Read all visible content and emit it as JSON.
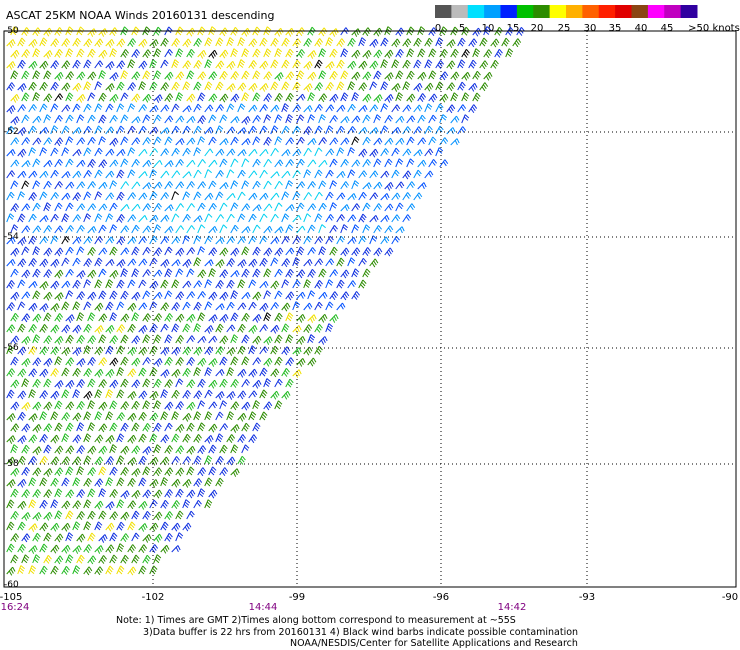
{
  "title": "ASCAT 25KM NOAA Winds 20160131 descending",
  "legend": {
    "ticks": [
      "0",
      "5",
      "10",
      "15",
      "20",
      "25",
      "30",
      "35",
      "40",
      "45",
      ">50 knots"
    ],
    "colors": [
      "#555555",
      "#bbbbbb",
      "#00e0ff",
      "#00a0ff",
      "#0020ff",
      "#00c000",
      "#2c8c00",
      "#ffff00",
      "#ffb000",
      "#ff6000",
      "#ff2000",
      "#e00000",
      "#8b4513",
      "#ff00ff",
      "#c000c0",
      "#3000a0"
    ]
  },
  "axes": {
    "lat_labels": [
      "-50",
      "-52",
      "-54",
      "-56",
      "-58",
      "-60"
    ],
    "lon_labels": [
      "-105",
      "-102",
      "-99",
      "-96",
      "-93",
      "-90"
    ]
  },
  "times": [
    "16:24",
    "14:44",
    "14:42"
  ],
  "notes": {
    "line1": "Note: 1) Times are GMT 2)Times along bottom correspond to measurement at ~55S",
    "line2": "3)Data buffer is 22 hrs from 20160131 4) Black wind barbs indicate possible contamination",
    "line3": "NOAA/NESDIS/Center for Satellite Applications and Research"
  },
  "map_data": {
    "type": "wind-barb-swath",
    "lat_range": [
      -60,
      -50
    ],
    "lon_range": [
      -105,
      -90
    ],
    "speed_units": "knots"
  }
}
